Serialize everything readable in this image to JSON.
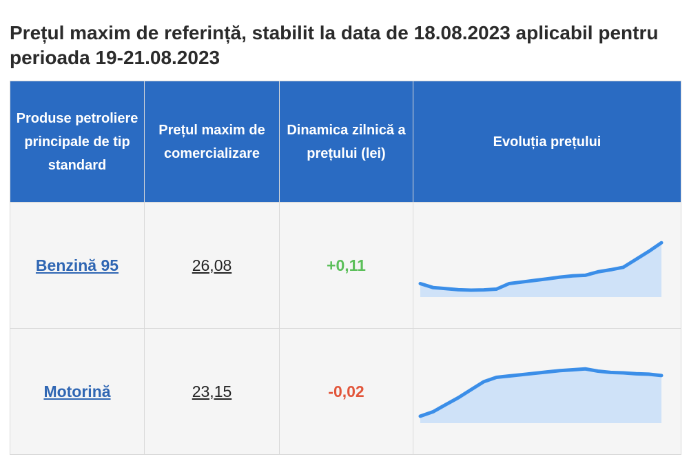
{
  "title": "Prețul maxim de referință, stabilit la data de 18.08.2023 aplicabil pentru perioada 19-21.08.2023",
  "table": {
    "headers": [
      "Produse petroliere principale de tip standard",
      "Prețul maxim de comercializare",
      "Dinamica zilnică a prețului (lei)",
      "Evoluția prețului"
    ],
    "rows": [
      {
        "product": "Benzină 95",
        "price": "26,08",
        "change": "+0,11",
        "change_color": "#5cbf5a",
        "trend": [
          10.5,
          8.0,
          7.3,
          6.6,
          6.3,
          6.5,
          7.0,
          10.5,
          11.5,
          12.5,
          13.5,
          14.6,
          15.4,
          15.8,
          18.0,
          19.3,
          20.9,
          26.0,
          31.0,
          36.5
        ]
      },
      {
        "product": "Motorină",
        "price": "23,15",
        "change": "-0,02",
        "change_color": "#e2553a",
        "trend": [
          2.0,
          7.0,
          15.0,
          23.0,
          32.0,
          41.0,
          46.0,
          47.5,
          49.0,
          50.5,
          52.0,
          53.5,
          54.5,
          55.5,
          53.0,
          51.5,
          51.0,
          50.0,
          49.5,
          48.0
        ]
      }
    ]
  },
  "colors": {
    "header_bg": "#2a6bc2",
    "link": "#2f66b3",
    "spark_line": "#3b8ee8",
    "spark_fill": "#cfe2f8"
  }
}
